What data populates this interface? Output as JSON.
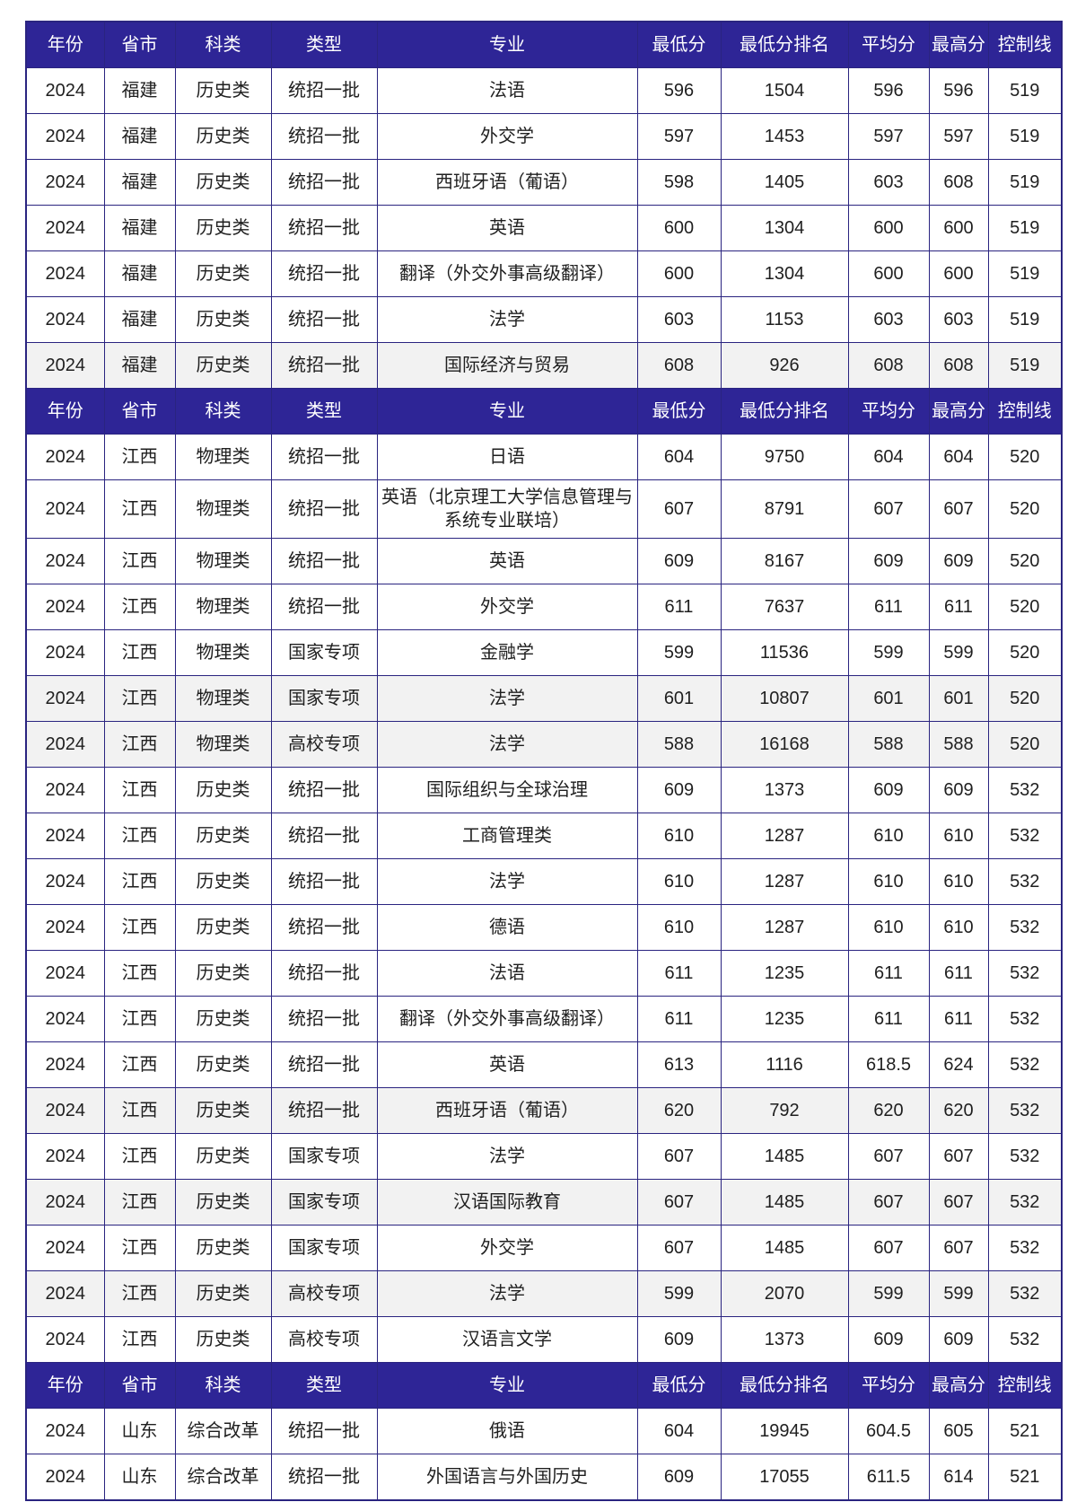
{
  "colors": {
    "header_background": "#2e2596",
    "header_text": "#ffffff",
    "table_border": "#2a2480",
    "shaded_row_background": "#f2f2f2",
    "body_text": "#1f1f1f",
    "page_background": "#ffffff"
  },
  "table": {
    "columns": [
      "年份",
      "省市",
      "科类",
      "类型",
      "专业",
      "最低分",
      "最低分排名",
      "平均分",
      "最高分",
      "控制线"
    ],
    "sections": [
      {
        "rows": [
          {
            "shaded": false,
            "cells": [
              "2024",
              "福建",
              "历史类",
              "统招一批",
              "法语",
              "596",
              "1504",
              "596",
              "596",
              "519"
            ]
          },
          {
            "shaded": false,
            "cells": [
              "2024",
              "福建",
              "历史类",
              "统招一批",
              "外交学",
              "597",
              "1453",
              "597",
              "597",
              "519"
            ]
          },
          {
            "shaded": false,
            "cells": [
              "2024",
              "福建",
              "历史类",
              "统招一批",
              "西班牙语（葡语）",
              "598",
              "1405",
              "603",
              "608",
              "519"
            ]
          },
          {
            "shaded": false,
            "cells": [
              "2024",
              "福建",
              "历史类",
              "统招一批",
              "英语",
              "600",
              "1304",
              "600",
              "600",
              "519"
            ]
          },
          {
            "shaded": false,
            "cells": [
              "2024",
              "福建",
              "历史类",
              "统招一批",
              "翻译（外交外事高级翻译）",
              "600",
              "1304",
              "600",
              "600",
              "519"
            ]
          },
          {
            "shaded": false,
            "cells": [
              "2024",
              "福建",
              "历史类",
              "统招一批",
              "法学",
              "603",
              "1153",
              "603",
              "603",
              "519"
            ]
          },
          {
            "shaded": true,
            "cells": [
              "2024",
              "福建",
              "历史类",
              "统招一批",
              "国际经济与贸易",
              "608",
              "926",
              "608",
              "608",
              "519"
            ]
          }
        ]
      },
      {
        "rows": [
          {
            "shaded": false,
            "cells": [
              "2024",
              "江西",
              "物理类",
              "统招一批",
              "日语",
              "604",
              "9750",
              "604",
              "604",
              "520"
            ]
          },
          {
            "shaded": false,
            "cells": [
              "2024",
              "江西",
              "物理类",
              "统招一批",
              "英语（北京理工大学信息管理与系统专业联培）",
              "607",
              "8791",
              "607",
              "607",
              "520"
            ]
          },
          {
            "shaded": false,
            "cells": [
              "2024",
              "江西",
              "物理类",
              "统招一批",
              "英语",
              "609",
              "8167",
              "609",
              "609",
              "520"
            ]
          },
          {
            "shaded": false,
            "cells": [
              "2024",
              "江西",
              "物理类",
              "统招一批",
              "外交学",
              "611",
              "7637",
              "611",
              "611",
              "520"
            ]
          },
          {
            "shaded": false,
            "cells": [
              "2024",
              "江西",
              "物理类",
              "国家专项",
              "金融学",
              "599",
              "11536",
              "599",
              "599",
              "520"
            ]
          },
          {
            "shaded": true,
            "cells": [
              "2024",
              "江西",
              "物理类",
              "国家专项",
              "法学",
              "601",
              "10807",
              "601",
              "601",
              "520"
            ]
          },
          {
            "shaded": true,
            "cells": [
              "2024",
              "江西",
              "物理类",
              "高校专项",
              "法学",
              "588",
              "16168",
              "588",
              "588",
              "520"
            ]
          },
          {
            "shaded": false,
            "cells": [
              "2024",
              "江西",
              "历史类",
              "统招一批",
              "国际组织与全球治理",
              "609",
              "1373",
              "609",
              "609",
              "532"
            ]
          },
          {
            "shaded": false,
            "cells": [
              "2024",
              "江西",
              "历史类",
              "统招一批",
              "工商管理类",
              "610",
              "1287",
              "610",
              "610",
              "532"
            ]
          },
          {
            "shaded": false,
            "cells": [
              "2024",
              "江西",
              "历史类",
              "统招一批",
              "法学",
              "610",
              "1287",
              "610",
              "610",
              "532"
            ]
          },
          {
            "shaded": false,
            "cells": [
              "2024",
              "江西",
              "历史类",
              "统招一批",
              "德语",
              "610",
              "1287",
              "610",
              "610",
              "532"
            ]
          },
          {
            "shaded": false,
            "cells": [
              "2024",
              "江西",
              "历史类",
              "统招一批",
              "法语",
              "611",
              "1235",
              "611",
              "611",
              "532"
            ]
          },
          {
            "shaded": false,
            "cells": [
              "2024",
              "江西",
              "历史类",
              "统招一批",
              "翻译（外交外事高级翻译）",
              "611",
              "1235",
              "611",
              "611",
              "532"
            ]
          },
          {
            "shaded": false,
            "cells": [
              "2024",
              "江西",
              "历史类",
              "统招一批",
              "英语",
              "613",
              "1116",
              "618.5",
              "624",
              "532"
            ]
          },
          {
            "shaded": true,
            "cells": [
              "2024",
              "江西",
              "历史类",
              "统招一批",
              "西班牙语（葡语）",
              "620",
              "792",
              "620",
              "620",
              "532"
            ]
          },
          {
            "shaded": false,
            "cells": [
              "2024",
              "江西",
              "历史类",
              "国家专项",
              "法学",
              "607",
              "1485",
              "607",
              "607",
              "532"
            ]
          },
          {
            "shaded": true,
            "cells": [
              "2024",
              "江西",
              "历史类",
              "国家专项",
              "汉语国际教育",
              "607",
              "1485",
              "607",
              "607",
              "532"
            ]
          },
          {
            "shaded": false,
            "cells": [
              "2024",
              "江西",
              "历史类",
              "国家专项",
              "外交学",
              "607",
              "1485",
              "607",
              "607",
              "532"
            ]
          },
          {
            "shaded": true,
            "cells": [
              "2024",
              "江西",
              "历史类",
              "高校专项",
              "法学",
              "599",
              "2070",
              "599",
              "599",
              "532"
            ]
          },
          {
            "shaded": false,
            "cells": [
              "2024",
              "江西",
              "历史类",
              "高校专项",
              "汉语言文学",
              "609",
              "1373",
              "609",
              "609",
              "532"
            ]
          }
        ]
      },
      {
        "rows": [
          {
            "shaded": false,
            "cells": [
              "2024",
              "山东",
              "综合改革",
              "统招一批",
              "俄语",
              "604",
              "19945",
              "604.5",
              "605",
              "521"
            ]
          },
          {
            "shaded": false,
            "cells": [
              "2024",
              "山东",
              "综合改革",
              "统招一批",
              "外国语言与外国历史",
              "609",
              "17055",
              "611.5",
              "614",
              "521"
            ]
          }
        ]
      }
    ]
  }
}
